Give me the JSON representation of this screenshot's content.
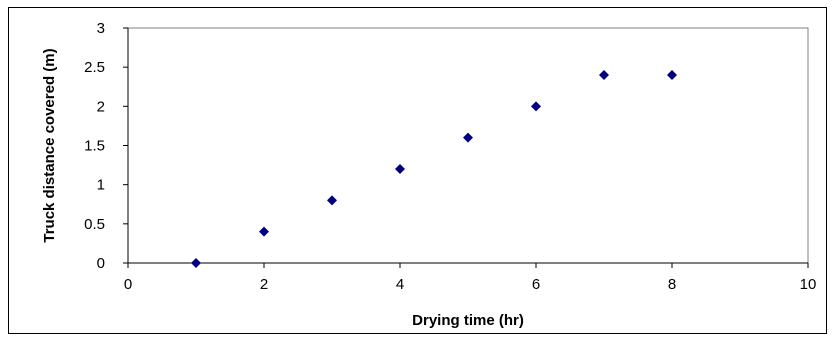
{
  "chart_data": {
    "type": "scatter",
    "title": "",
    "xlabel": "Drying time (hr)",
    "ylabel": "Truck distance covered (m)",
    "xlim": [
      0,
      10
    ],
    "ylim": [
      0,
      3
    ],
    "x_ticks": [
      "0",
      "2",
      "4",
      "6",
      "8",
      "10"
    ],
    "y_ticks": [
      "0",
      "0.5",
      "1",
      "1.5",
      "2",
      "2.5",
      "3"
    ],
    "grid": false,
    "legend": "none",
    "marker": "diamond",
    "marker_color": "#000080",
    "series": [
      {
        "x": [
          1,
          2,
          3,
          4,
          5,
          6,
          7,
          8
        ],
        "y": [
          0,
          0.4,
          0.8,
          1.2,
          1.6,
          2.0,
          2.4,
          2.4
        ]
      }
    ]
  }
}
